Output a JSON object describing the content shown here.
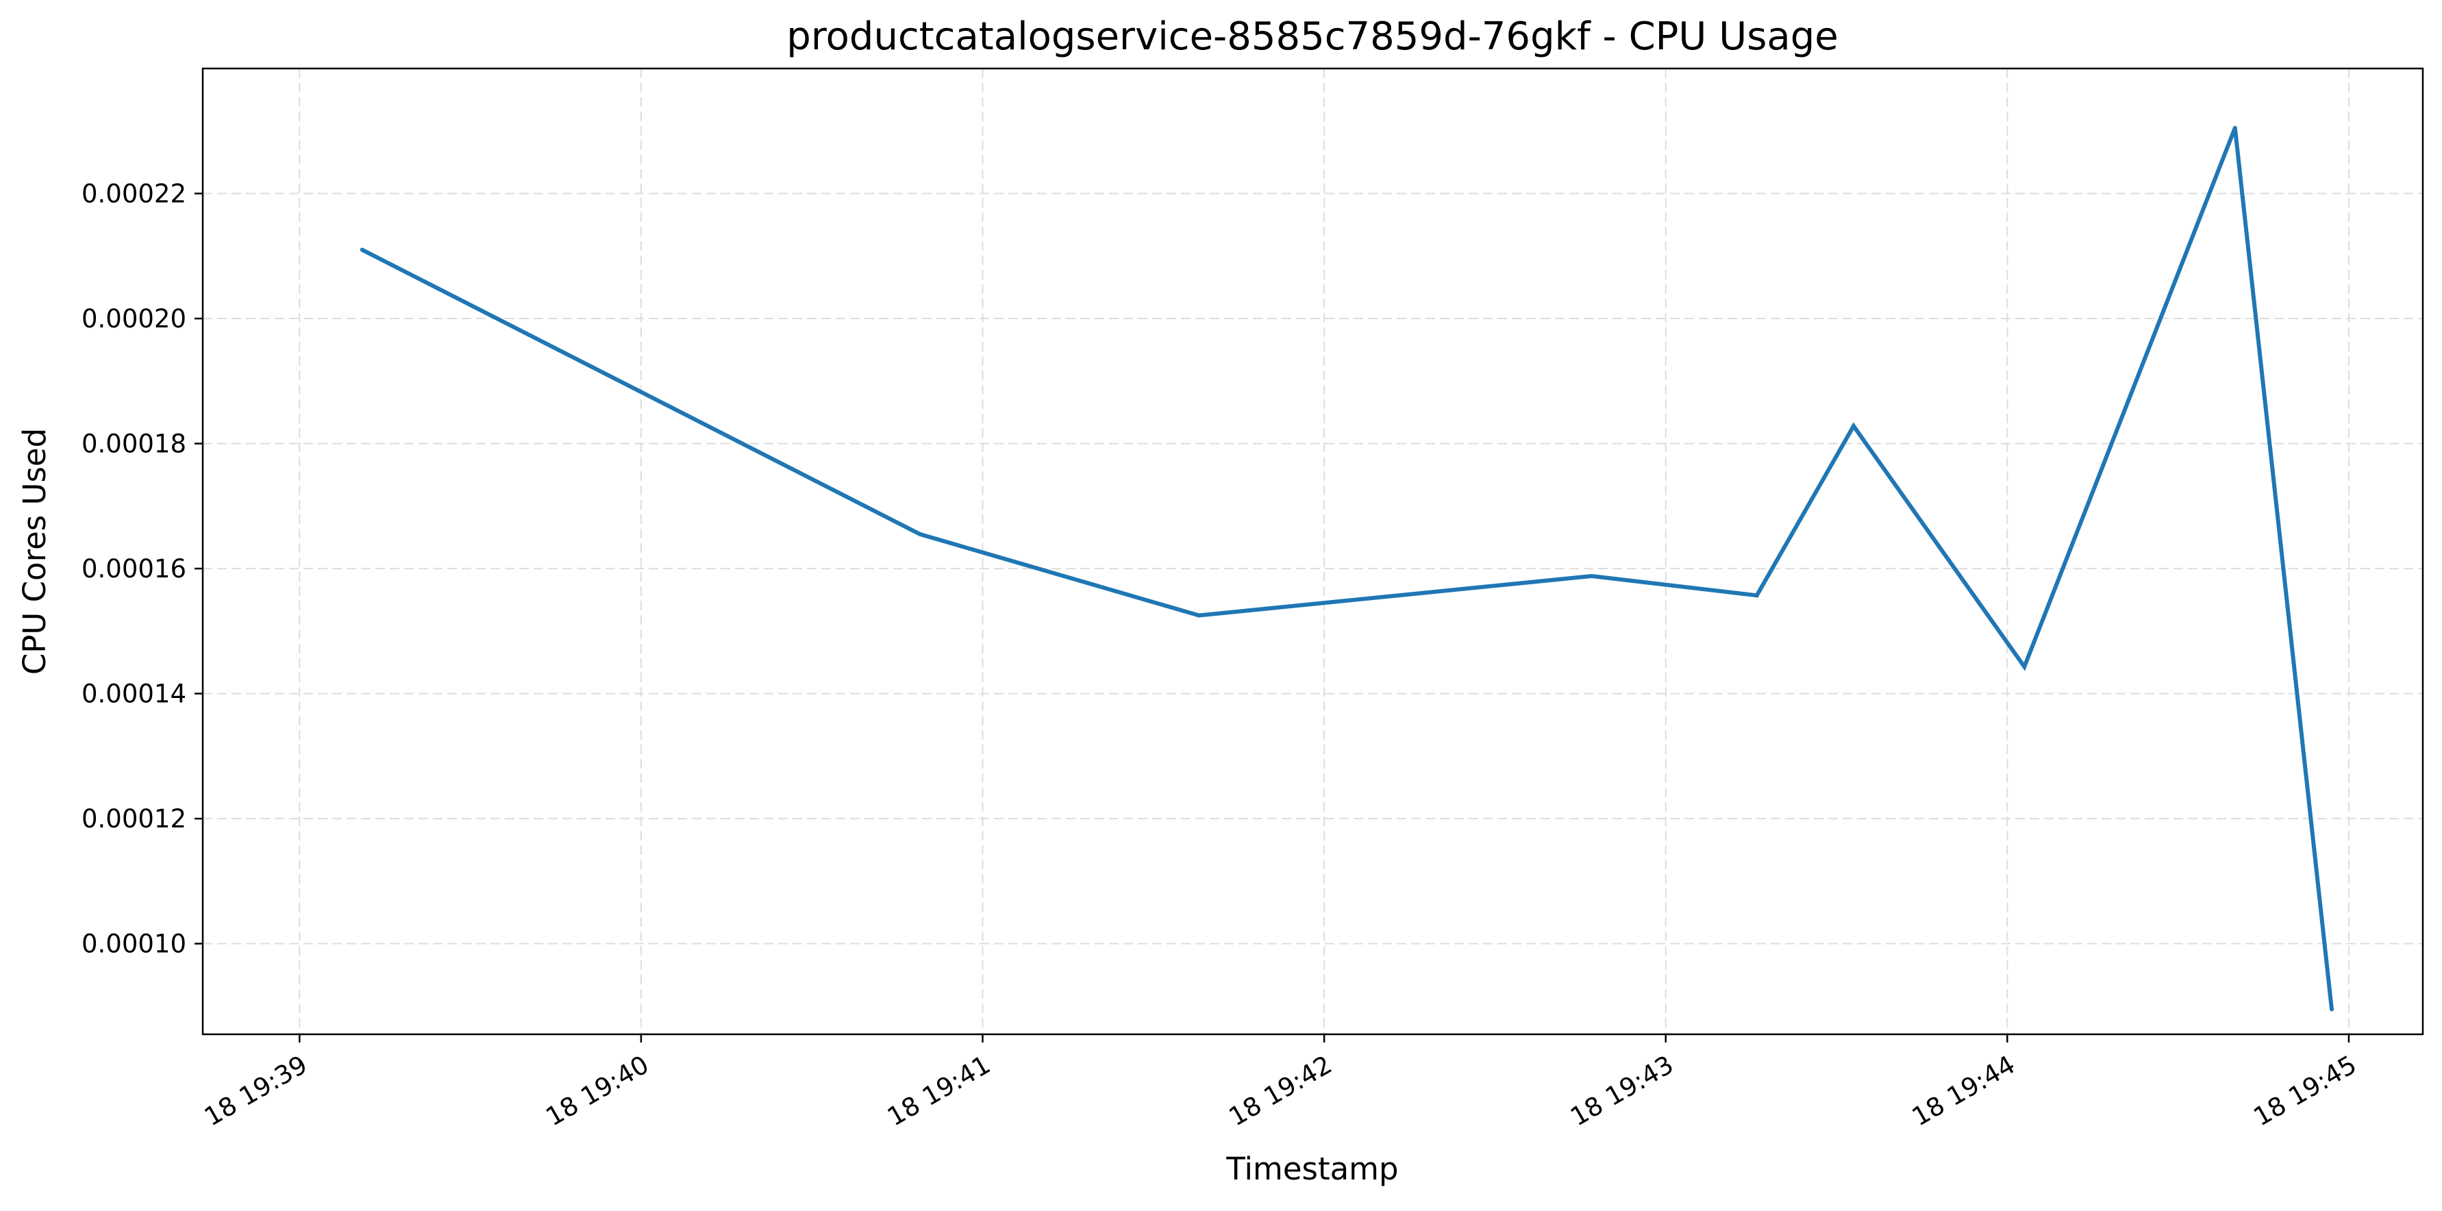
{
  "chart_data": {
    "type": "line",
    "title": "productcatalogservice-8585c7859d-76gkf - CPU Usage",
    "xlabel": "Timestamp",
    "ylabel": "CPU Cores Used",
    "grid": true,
    "x_ticks": [
      {
        "time": "19:39",
        "label": "18 19:39"
      },
      {
        "time": "19:40",
        "label": "18 19:40"
      },
      {
        "time": "19:41",
        "label": "18 19:41"
      },
      {
        "time": "19:42",
        "label": "18 19:42"
      },
      {
        "time": "19:43",
        "label": "18 19:43"
      },
      {
        "time": "19:44",
        "label": "18 19:44"
      },
      {
        "time": "19:45",
        "label": "18 19:45"
      }
    ],
    "y_ticks": [
      0.0001,
      0.00012,
      0.00014,
      0.00016,
      0.00018,
      0.0002,
      0.00022
    ],
    "y_tick_labels": [
      "0.00010",
      "0.00012",
      "0.00014",
      "0.00016",
      "0.00018",
      "0.00020",
      "0.00022"
    ],
    "xlim": [
      "19:38:43",
      "19:45:13"
    ],
    "ylim": [
      8.55e-05,
      0.00024
    ],
    "series": [
      {
        "color": "#1f77b4",
        "points": [
          {
            "x": "19:39:11",
            "y": 0.000211
          },
          {
            "x": "19:40:49",
            "y": 0.0001655
          },
          {
            "x": "19:41:38",
            "y": 0.0001525
          },
          {
            "x": "19:42:47",
            "y": 0.0001588
          },
          {
            "x": "19:43:16",
            "y": 0.0001557
          },
          {
            "x": "19:43:33",
            "y": 0.0001828
          },
          {
            "x": "19:44:03",
            "y": 0.0001443
          },
          {
            "x": "19:44:40",
            "y": 0.0002305
          },
          {
            "x": "19:44:57",
            "y": 8.95e-05
          }
        ]
      }
    ]
  }
}
